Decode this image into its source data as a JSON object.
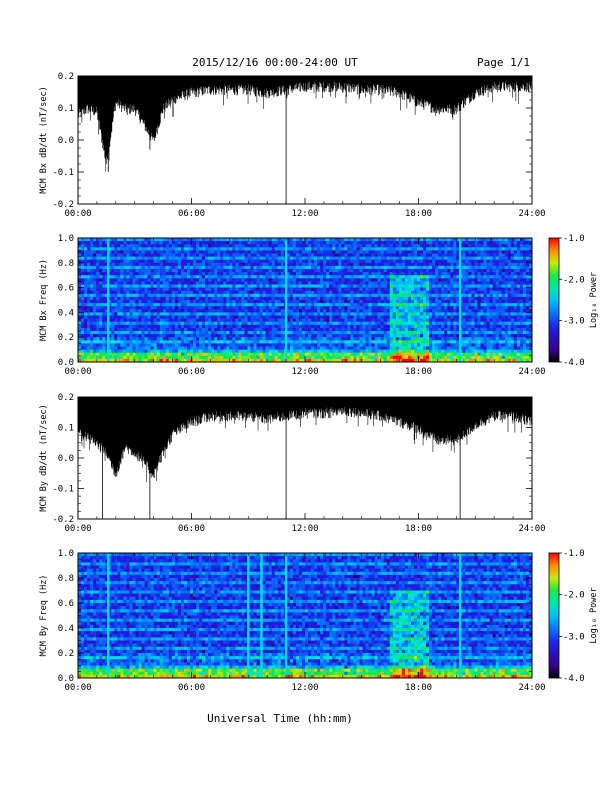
{
  "header": {
    "title": "2015/12/16  00:00-24:00 UT",
    "page": "Page 1/1"
  },
  "xlabel": "Universal Time (hh:mm)",
  "chart_data": [
    {
      "type": "line",
      "name": "bx-dbdt",
      "ylabel": "MCM Bx dB/dt (nT/sec)",
      "xlim": [
        0,
        24
      ],
      "ylim": [
        -0.2,
        0.2
      ],
      "xticks": [
        "00:00",
        "06:00",
        "12:00",
        "18:00",
        "24:00"
      ],
      "yticks": [
        "0.2",
        "0.1",
        "0.0",
        "-0.1",
        "-0.2"
      ],
      "envelope": {
        "hours": [
          0,
          0.5,
          1.0,
          1.5,
          2.0,
          2.5,
          3.0,
          3.5,
          4.0,
          4.5,
          5.0,
          6.0,
          7.0,
          8.0,
          9.0,
          10.0,
          11.0,
          12.0,
          13.0,
          14.0,
          15.0,
          16.0,
          17.0,
          18.0,
          19.0,
          20.0,
          21.0,
          22.0,
          23.0,
          24.0
        ],
        "min": [
          0.08,
          0.1,
          0.09,
          -0.07,
          0.12,
          0.1,
          0.1,
          0.05,
          0.0,
          0.1,
          0.13,
          0.15,
          0.16,
          0.16,
          0.16,
          0.15,
          0.16,
          0.17,
          0.17,
          0.17,
          0.16,
          0.16,
          0.15,
          0.12,
          0.1,
          0.1,
          0.15,
          0.17,
          0.17,
          0.17
        ]
      },
      "spikes": [
        {
          "hour": 1.6,
          "value": -0.1
        },
        {
          "hour": 3.8,
          "value": -0.03
        },
        {
          "hour": 11.0,
          "value": -0.2
        },
        {
          "hour": 20.2,
          "value": -0.2
        }
      ]
    },
    {
      "type": "heatmap",
      "name": "bx-spectrogram",
      "ylabel": "MCM Bx Freq (Hz)",
      "xlim": [
        0,
        24
      ],
      "ylim": [
        0,
        1.0
      ],
      "xticks": [
        "00:00",
        "06:00",
        "12:00",
        "18:00",
        "24:00"
      ],
      "yticks": [
        "1.0",
        "0.8",
        "0.6",
        "0.4",
        "0.2",
        "0.0"
      ],
      "colorbar": {
        "label": "Log₁₀ Power",
        "min": -4.0,
        "max": -1.0,
        "ticks": [
          "-1.0",
          "-2.0",
          "-3.0",
          "-4.0"
        ]
      },
      "lines": [
        1.6,
        11.0,
        20.2
      ],
      "active_band": [
        16.5,
        18.5
      ]
    },
    {
      "type": "line",
      "name": "by-dbdt",
      "ylabel": "MCM By dB/dt (nT/sec)",
      "xlim": [
        0,
        24
      ],
      "ylim": [
        -0.2,
        0.2
      ],
      "xticks": [
        "00:00",
        "06:00",
        "12:00",
        "18:00",
        "24:00"
      ],
      "yticks": [
        "0.2",
        "0.1",
        "0.0",
        "-0.1",
        "-0.2"
      ],
      "envelope": {
        "hours": [
          0,
          0.5,
          1.0,
          1.5,
          2.0,
          2.5,
          3.0,
          3.5,
          4.0,
          4.5,
          5.0,
          6.0,
          7.0,
          8.0,
          9.0,
          10.0,
          11.0,
          12.0,
          13.0,
          14.0,
          15.0,
          16.0,
          17.0,
          18.0,
          19.0,
          20.0,
          21.0,
          22.0,
          23.0,
          24.0
        ],
        "min": [
          0.09,
          0.07,
          0.05,
          0.02,
          -0.05,
          0.04,
          0.02,
          -0.01,
          -0.05,
          0.02,
          0.08,
          0.12,
          0.14,
          0.14,
          0.14,
          0.13,
          0.14,
          0.15,
          0.15,
          0.16,
          0.15,
          0.14,
          0.12,
          0.1,
          0.06,
          0.06,
          0.11,
          0.14,
          0.14,
          0.12
        ]
      },
      "spikes": [
        {
          "hour": 1.3,
          "value": -0.2
        },
        {
          "hour": 3.8,
          "value": -0.2
        },
        {
          "hour": 11.0,
          "value": -0.2
        },
        {
          "hour": 20.2,
          "value": -0.2
        }
      ]
    },
    {
      "type": "heatmap",
      "name": "by-spectrogram",
      "ylabel": "MCM By Freq (Hz)",
      "xlim": [
        0,
        24
      ],
      "ylim": [
        0,
        1.0
      ],
      "xticks": [
        "00:00",
        "06:00",
        "12:00",
        "18:00",
        "24:00"
      ],
      "yticks": [
        "1.0",
        "0.8",
        "0.6",
        "0.4",
        "0.2",
        "0.0"
      ],
      "colorbar": {
        "label": "Log₁₀ Power",
        "min": -4.0,
        "max": -1.0,
        "ticks": [
          "-1.0",
          "-2.0",
          "-3.0",
          "-4.0"
        ]
      },
      "lines": [
        1.6,
        9.0,
        9.7,
        11.0,
        20.2
      ],
      "active_band": [
        16.5,
        18.5
      ]
    }
  ]
}
